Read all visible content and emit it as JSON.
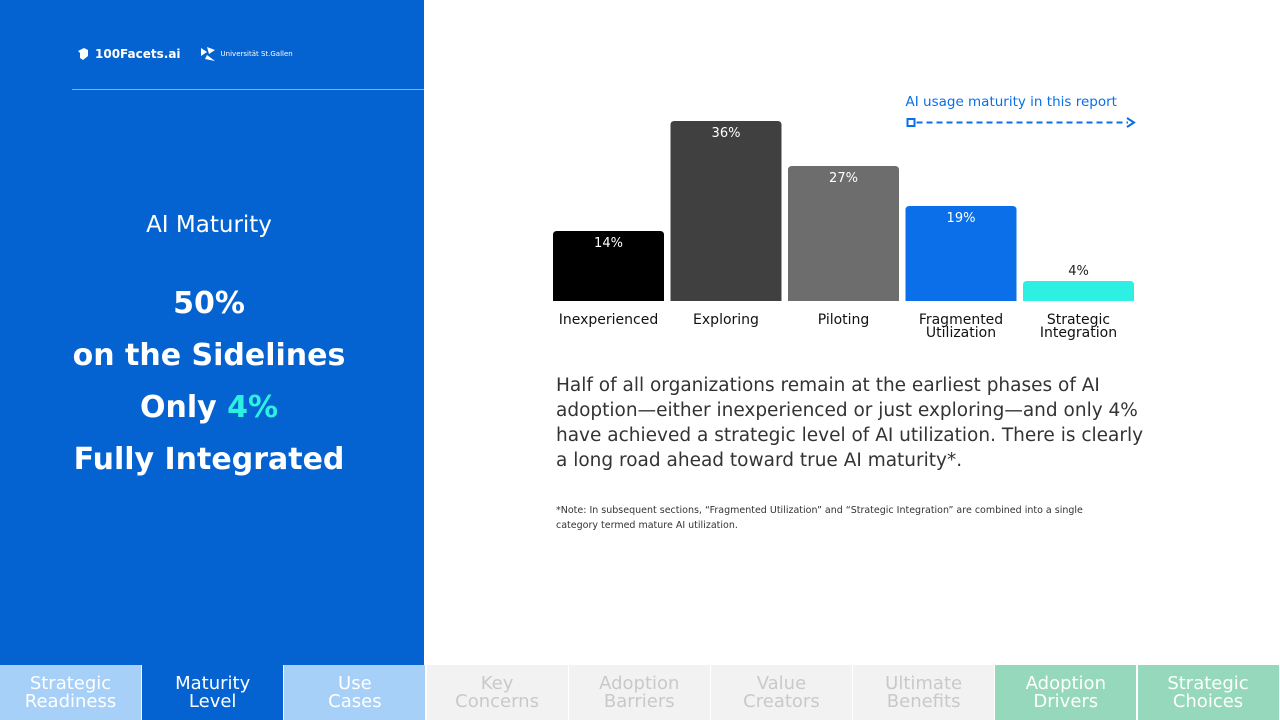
{
  "branding": {
    "logo_primary": "100Facets.ai",
    "logo_secondary": "Universität St.Gallen"
  },
  "left_panel": {
    "section_label": "AI Maturity",
    "headline_line1": "50%",
    "headline_line2": "on the Sidelines",
    "headline_line3_prefix": "Only ",
    "headline_line3_accent": "4%",
    "headline_line4": "Fully Integrated"
  },
  "chart_data": {
    "type": "bar",
    "categories": [
      "Inexperienced",
      "Exploring",
      "Piloting",
      "Fragmented\nUtilization",
      "Strategic\nIntegration"
    ],
    "values": [
      14,
      36,
      27,
      19,
      4
    ],
    "value_labels": [
      "14%",
      "36%",
      "27%",
      "19%",
      "4%"
    ],
    "colors": [
      "#000000",
      "#404040",
      "#6d6d6d",
      "#0a6fe8",
      "#2ef0e2"
    ],
    "label_colors": [
      "#ffffff",
      "#ffffff",
      "#ffffff",
      "#ffffff",
      "#222222"
    ],
    "ylim": [
      0,
      36
    ],
    "title": "",
    "xlabel": "",
    "ylabel": "",
    "annotation": {
      "text": "AI usage maturity in this report",
      "color": "#0a6fe8",
      "spans_from_category": 3
    }
  },
  "body": {
    "paragraph": "Half of all organizations remain at the earliest phases of AI adoption—either inexperienced or just exploring—and only 4% have achieved a strategic level of AI utilization. There is clearly a long road ahead toward true AI maturity*.",
    "note": "*Note: In subsequent sections, “Fragmented Utilization” and “Strategic Integration” are combined into a single category termed mature AI utilization."
  },
  "nav": {
    "tabs": [
      {
        "label": "Strategic\nReadiness",
        "style": "light"
      },
      {
        "label": "Maturity\nLevel",
        "style": "active"
      },
      {
        "label": "Use\nCases",
        "style": "light"
      },
      {
        "label": "Key\nConcerns",
        "style": "grey"
      },
      {
        "label": "Adoption\nBarriers",
        "style": "grey"
      },
      {
        "label": "Value\nCreators",
        "style": "grey"
      },
      {
        "label": "Ultimate\nBenefits",
        "style": "grey"
      },
      {
        "label": "Adoption\nDrivers",
        "style": "green"
      },
      {
        "label": "Strategic\nChoices",
        "style": "green"
      }
    ]
  }
}
